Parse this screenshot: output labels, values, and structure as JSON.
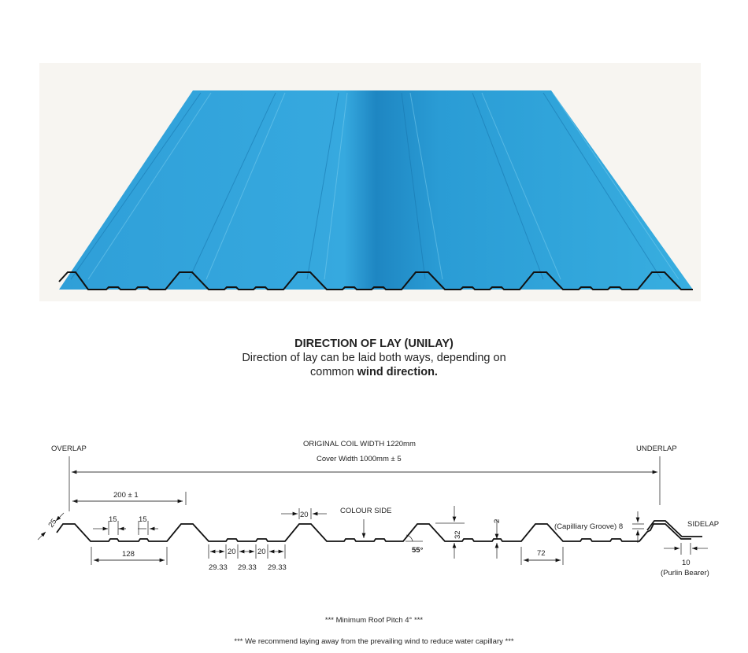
{
  "caption": {
    "title": "DIRECTION OF LAY (UNILAY)",
    "line1": "Direction of lay can be laid both ways, depending on",
    "line2_prefix": "common ",
    "line2_bold": "wind direction."
  },
  "diagram": {
    "overlap": "OVERLAP",
    "underlap": "UNDERLAP",
    "coil_width": "ORIGINAL COIL WIDTH 1220mm",
    "cover_width": "Cover Width 1000mm ± 5",
    "pitch": "200 ± 1",
    "lip": "25",
    "groove1": "15",
    "groove2": "15",
    "pan_width": "128",
    "crest_width": "20",
    "colour_side": "COLOUR SIDE",
    "seg_a": "29.33",
    "seg_b": "29.33",
    "seg_c": "29.33",
    "rib_a": "20",
    "rib_b": "20",
    "angle": "55°",
    "height": "32",
    "stiffener": "2",
    "base_width": "72",
    "capillary": "(Capilliary Groove) 8",
    "sidelap": "SIDELAP",
    "purlin_value": "10",
    "purlin_label": "(Purlin Bearer)"
  },
  "notes": {
    "pitch": "*** Minimum Roof Pitch 4° ***",
    "recommend": "*** We recommend laying away from the prevailing wind to reduce water capillary ***"
  },
  "colors": {
    "sheet": "#2a9fd6",
    "sheet_dark": "#1d82bd",
    "background": "#f7f5f1"
  }
}
